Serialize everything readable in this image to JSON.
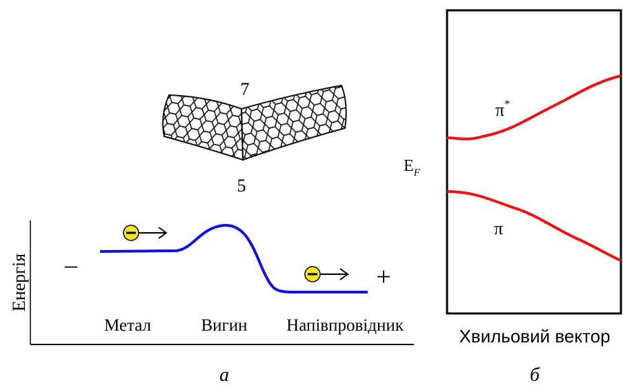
{
  "panel_a": {
    "nanotube_labels": [
      "7",
      "5"
    ],
    "axis_label": "Енергія",
    "left_sign": "–",
    "right_sign": "+",
    "regions": [
      "Метал",
      "Вигин",
      "Напівпровідник"
    ],
    "caption": "а"
  },
  "panel_b": {
    "fermi_level": {
      "symbol": "E",
      "subscript": "F"
    },
    "bands": [
      {
        "symbol": "π",
        "superscript": "*"
      },
      {
        "symbol": "π"
      }
    ],
    "axis_label": "Хвильовий вектор",
    "caption": "б"
  }
}
